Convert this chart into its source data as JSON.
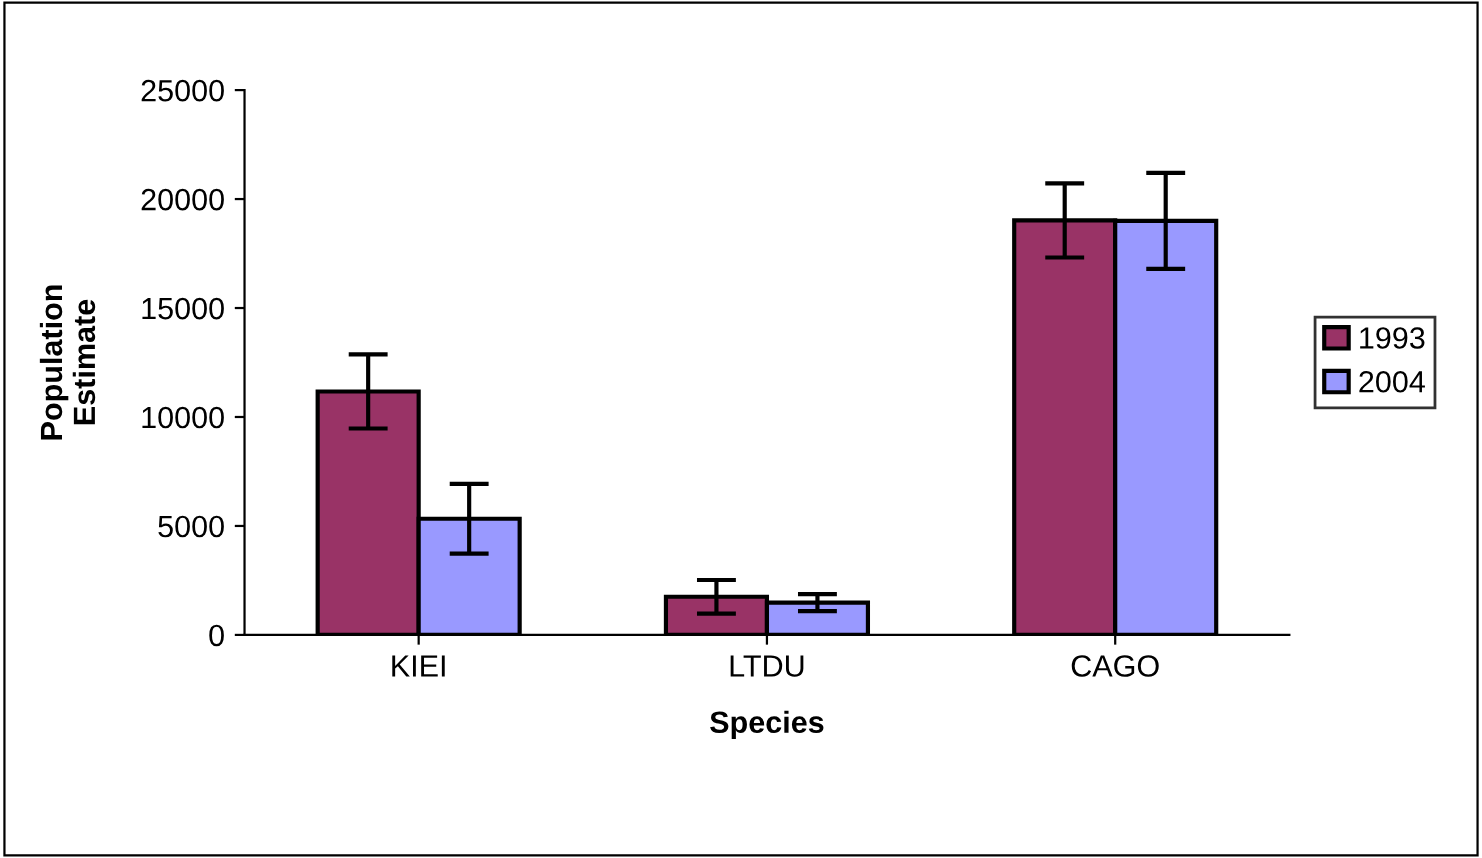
{
  "chart_data": {
    "type": "bar",
    "xlabel": "Species",
    "ylabel": "Population\nEstimate",
    "categories": [
      "KIEI",
      "LTDU",
      "CAGO"
    ],
    "series": [
      {
        "name": "1993",
        "color": "#993366",
        "values": [
          11170,
          1750,
          19020
        ],
        "errors": [
          1700,
          770,
          1700
        ]
      },
      {
        "name": "2004",
        "color": "#9999ff",
        "values": [
          5330,
          1480,
          19000
        ],
        "errors": [
          1600,
          390,
          2200
        ]
      }
    ],
    "ylim": [
      0,
      25000
    ],
    "yticks": [
      0,
      5000,
      10000,
      15000,
      20000,
      25000
    ],
    "grid": false,
    "legend": "right"
  }
}
